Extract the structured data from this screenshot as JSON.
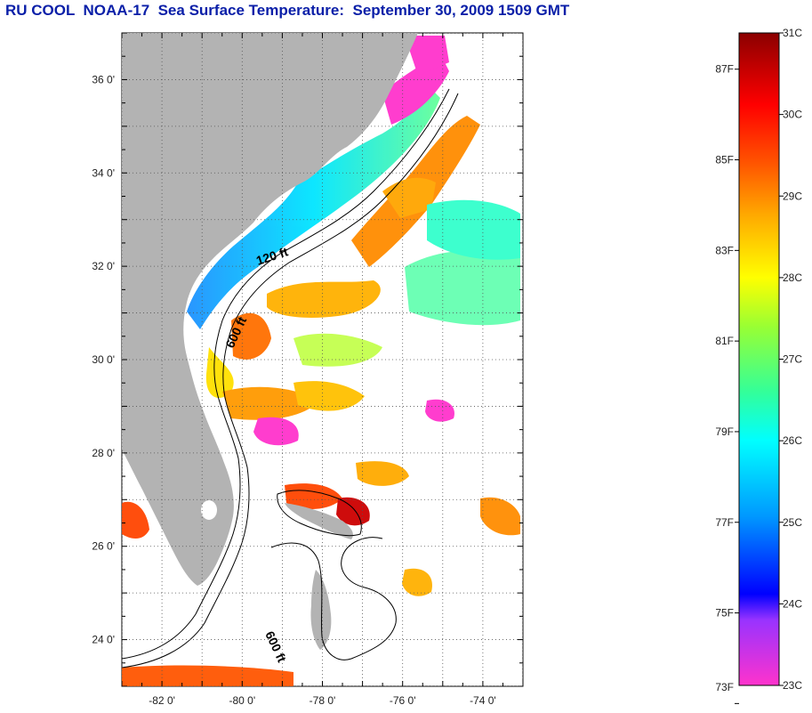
{
  "title": "RU COOL  NOAA-17  Sea Surface Temperature:  September 30, 2009 1509 GMT",
  "map": {
    "lon_range": [
      -83,
      -73
    ],
    "lat_range": [
      23,
      37
    ],
    "lat_ticks": [
      {
        "value": 24,
        "label": "24 0'"
      },
      {
        "value": 26,
        "label": "26 0'"
      },
      {
        "value": 28,
        "label": "28 0'"
      },
      {
        "value": 30,
        "label": "30 0'"
      },
      {
        "value": 32,
        "label": "32 0'"
      },
      {
        "value": 34,
        "label": "34 0'"
      },
      {
        "value": 36,
        "label": "36 0'"
      }
    ],
    "lon_ticks": [
      {
        "value": -82,
        "label": "-82 0'"
      },
      {
        "value": -80,
        "label": "-80 0'"
      },
      {
        "value": -78,
        "label": "-78 0'"
      },
      {
        "value": -76,
        "label": "-76 0'"
      },
      {
        "value": -74,
        "label": "-74 0'"
      }
    ],
    "contour_labels": [
      "120 ft",
      "600 ft",
      "600 ft"
    ],
    "land_color": "#b3b3b3",
    "grid": true
  },
  "colorbar": {
    "celsius": [
      {
        "value": 23,
        "label": "23C"
      },
      {
        "value": 24,
        "label": "24C"
      },
      {
        "value": 25,
        "label": "25C"
      },
      {
        "value": 26,
        "label": "26C"
      },
      {
        "value": 27,
        "label": "27C"
      },
      {
        "value": 28,
        "label": "28C"
      },
      {
        "value": 29,
        "label": "29C"
      },
      {
        "value": 30,
        "label": "30C"
      },
      {
        "value": 31,
        "label": "31C"
      }
    ],
    "fahrenheit": [
      {
        "value": 73,
        "label": "73F"
      },
      {
        "value": 75,
        "label": "75F"
      },
      {
        "value": 77,
        "label": "77F"
      },
      {
        "value": 79,
        "label": "79F"
      },
      {
        "value": 81,
        "label": "81F"
      },
      {
        "value": 83,
        "label": "83F"
      },
      {
        "value": 85,
        "label": "85F"
      },
      {
        "value": 87,
        "label": "87F"
      }
    ],
    "colors": [
      "#ff33cc",
      "#9933ff",
      "#0000ff",
      "#0099ff",
      "#00ffff",
      "#33ff99",
      "#99ff33",
      "#ffff00",
      "#ffaa00",
      "#ff5500",
      "#ff0000",
      "#8b0000"
    ]
  }
}
